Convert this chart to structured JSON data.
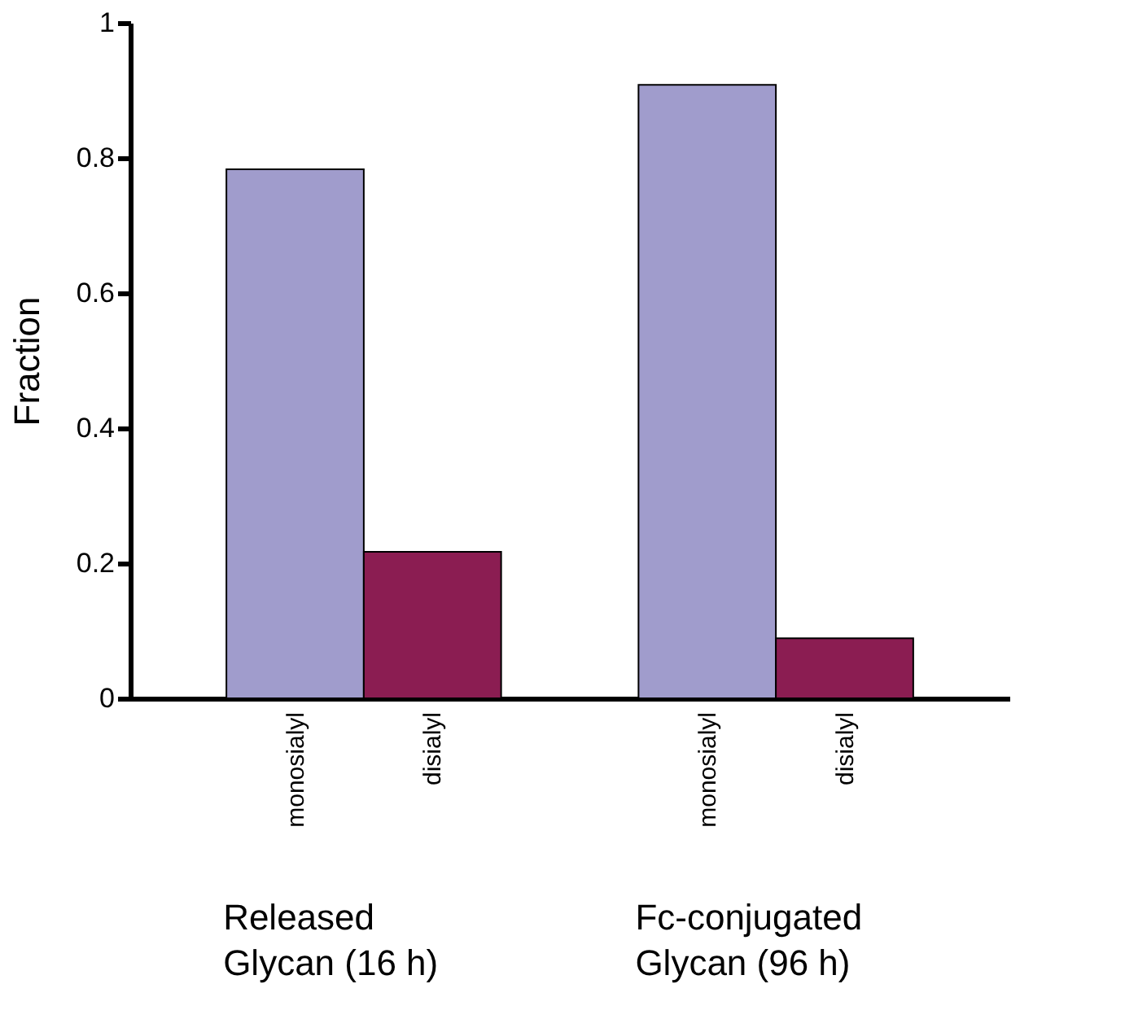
{
  "chart_data": {
    "type": "bar",
    "ylabel": "Fraction",
    "categories": [
      "monosialyl",
      "disialyl",
      "monosialyl",
      "disialyl"
    ],
    "values": [
      0.783,
      0.217,
      0.908,
      0.089
    ],
    "colors": [
      "#a09ccc",
      "#8b1d52",
      "#a09ccc",
      "#8b1d52"
    ],
    "ylim": [
      0,
      1
    ],
    "yticks": [
      0,
      0.2,
      0.4,
      0.6,
      0.8,
      1
    ],
    "grid": false,
    "annotations": [
      "Released\nGlycan (16 h)",
      "Fc-conjugated\nGlycan (96 h)"
    ]
  }
}
